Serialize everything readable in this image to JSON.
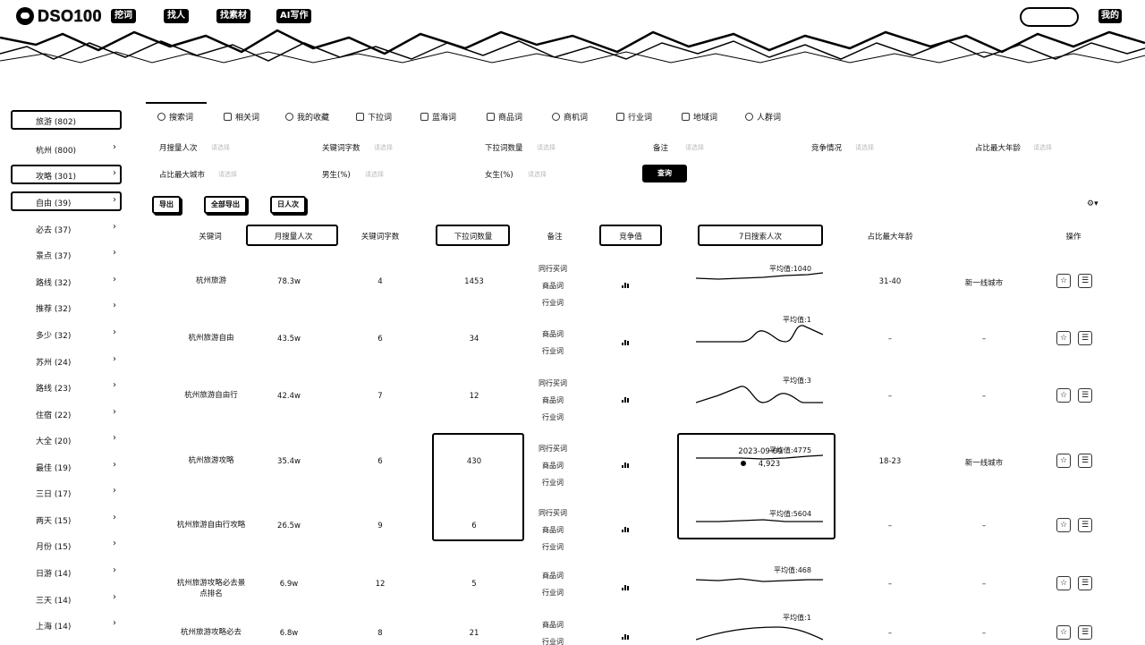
{
  "nav": {
    "logo": "DSO100",
    "items": [
      "挖词",
      "找人",
      "找素材",
      "AI写作"
    ],
    "me": "我的"
  },
  "sidebar": [
    {
      "label": "旅游 (802)",
      "chev": "",
      "boxed": true
    },
    {
      "label": "杭州 (800)",
      "chev": "›",
      "boxed": false
    },
    {
      "label": "攻略 (301)",
      "chev": "›",
      "boxed": true
    },
    {
      "label": "自由 (39)",
      "chev": "›",
      "boxed": true
    },
    {
      "label": "必去 (37)",
      "chev": "›",
      "boxed": false
    },
    {
      "label": "景点 (37)",
      "chev": "›",
      "boxed": false
    },
    {
      "label": "路线 (32)",
      "chev": "›",
      "boxed": false
    },
    {
      "label": "推荐 (32)",
      "chev": "›",
      "boxed": false
    },
    {
      "label": "多少 (32)",
      "chev": "›",
      "boxed": false
    },
    {
      "label": "苏州 (24)",
      "chev": "›",
      "boxed": false
    },
    {
      "label": "路线 (23)",
      "chev": "›",
      "boxed": false
    },
    {
      "label": "住宿 (22)",
      "chev": "›",
      "boxed": false
    },
    {
      "label": "大全 (20)",
      "chev": "›",
      "boxed": false
    },
    {
      "label": "最佳 (19)",
      "chev": "›",
      "boxed": false
    },
    {
      "label": "三日 (17)",
      "chev": "›",
      "boxed": false
    },
    {
      "label": "两天 (15)",
      "chev": "›",
      "boxed": false
    },
    {
      "label": "月份 (15)",
      "chev": "›",
      "boxed": false
    },
    {
      "label": "日游 (14)",
      "chev": "›",
      "boxed": false
    },
    {
      "label": "三天 (14)",
      "chev": "›",
      "boxed": false
    },
    {
      "label": "上海 (14)",
      "chev": "›",
      "boxed": false
    }
  ],
  "tabs": [
    "搜索词",
    "相关词",
    "我的收藏",
    "下拉词",
    "蓝海词",
    "商品词",
    "商机词",
    "行业词",
    "地域词",
    "人群词"
  ],
  "filters": {
    "monthly": "月搜量人次",
    "wordcount": "关键词字数",
    "dropdown": "下拉词数量",
    "note": "备注",
    "competition": "竞争情况",
    "maxage": "占比最大年龄",
    "maxcity": "占比最大城市",
    "male": "男生(%)",
    "female": "女生(%)",
    "placeholder": "请选择",
    "query": "查询"
  },
  "actions": [
    "导出",
    "全部导出",
    "日人次"
  ],
  "settings_icon": "⚙▾",
  "columns": [
    "关键词",
    "月搜量人次",
    "关键词字数",
    "下拉词数量",
    "备注",
    "竞争值",
    "7日搜索人次",
    "占比最大年龄",
    "操作"
  ],
  "rows": [
    {
      "keyword": "杭州旅游",
      "monthly": "78.3w",
      "chars": "4",
      "dropdown": "1453",
      "tags": [
        "同行买词",
        "商品词",
        "行业词"
      ],
      "bars": [
        3,
        6,
        5
      ],
      "avg": "平均值:1040",
      "age": "31-40",
      "city": "新一线城市"
    },
    {
      "keyword": "杭州旅游自由",
      "monthly": "43.5w",
      "chars": "6",
      "dropdown": "34",
      "tags": [
        "商品词",
        "行业词"
      ],
      "bars": [
        3,
        6,
        5
      ],
      "avg": "平均值:1",
      "age": "–",
      "city": "–"
    },
    {
      "keyword": "杭州旅游自由行",
      "monthly": "42.4w",
      "chars": "7",
      "dropdown": "12",
      "tags": [
        "同行买词",
        "商品词",
        "行业词"
      ],
      "bars": [
        3,
        6,
        5
      ],
      "avg": "平均值:3",
      "age": "–",
      "city": "–"
    },
    {
      "keyword": "杭州旅游攻略",
      "monthly": "35.4w",
      "chars": "6",
      "dropdown": "430",
      "tags": [
        "同行买词",
        "商品词",
        "行业词"
      ],
      "bars": [
        3,
        6,
        5
      ],
      "avg": "平均值:4775",
      "age": "18-23",
      "city": "新一线城市"
    },
    {
      "keyword": "杭州旅游自由行攻略",
      "monthly": "26.5w",
      "chars": "9",
      "dropdown": "6",
      "tags": [
        "同行买词",
        "商品词",
        "行业词"
      ],
      "bars": [
        3,
        6,
        5
      ],
      "avg": "平均值:5604",
      "age": "–",
      "city": "–"
    },
    {
      "keyword": "杭州旅游攻略必去景点排名",
      "monthly": "6.9w",
      "chars": "12",
      "dropdown": "5",
      "tags": [
        "商品词",
        "行业词"
      ],
      "bars": [
        3,
        6,
        5
      ],
      "avg": "平均值:468",
      "age": "–",
      "city": "–"
    },
    {
      "keyword": "杭州旅游攻略必去",
      "monthly": "6.8w",
      "chars": "8",
      "dropdown": "21",
      "tags": [
        "商品词",
        "行业词"
      ],
      "bars": [
        3,
        6,
        5
      ],
      "avg": "平均值:1",
      "age": "–",
      "city": "–"
    }
  ],
  "tooltip": {
    "date": "2023-09-09",
    "value": "4,923"
  },
  "op_icons": [
    "☆",
    "☰"
  ]
}
